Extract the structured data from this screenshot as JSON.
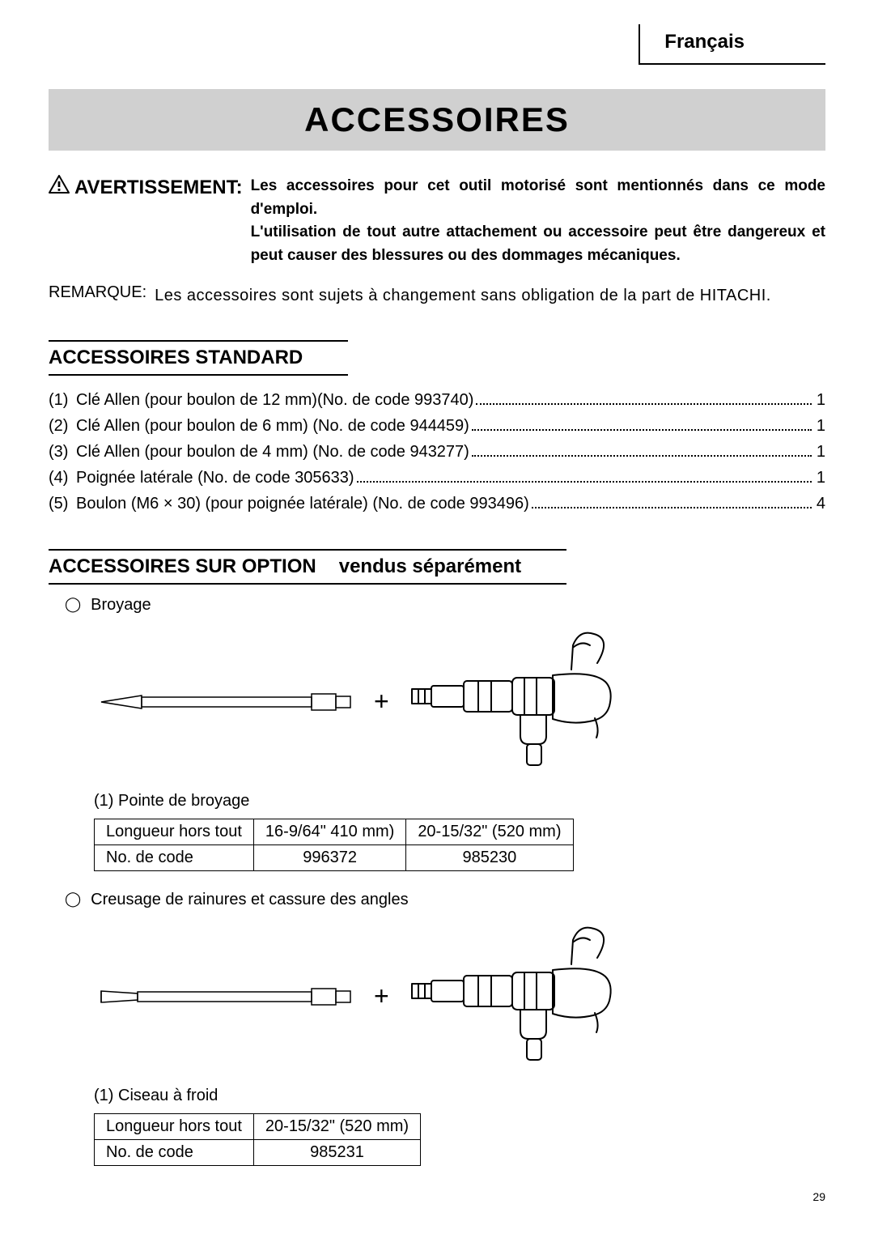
{
  "language": "Français",
  "title": "ACCESSOIRES",
  "warning": {
    "label": "AVERTISSEMENT:",
    "text": "Les accessoires pour cet outil motorisé sont mentionnés dans ce mode d'emploi.\nL'utilisation de tout autre attachement ou accessoire peut être dangereux et peut causer des blessures ou des dommages mécaniques."
  },
  "remark": {
    "label": "REMARQUE:",
    "text": "Les accessoires sont sujets à changement sans obligation de la part de HITACHI."
  },
  "standard": {
    "heading": "ACCESSOIRES STANDARD",
    "items": [
      {
        "num": "(1)",
        "label": "Clé Allen (pour boulon de 12 mm)(No. de code 993740)",
        "qty": "1"
      },
      {
        "num": "(2)",
        "label": "Clé Allen (pour boulon de 6 mm) (No. de code 944459)",
        "qty": "1"
      },
      {
        "num": "(3)",
        "label": "Clé Allen (pour boulon de 4 mm) (No. de code 943277)",
        "qty": "1"
      },
      {
        "num": "(4)",
        "label": "Poignée latérale (No. de code 305633)",
        "qty": "1"
      },
      {
        "num": "(5)",
        "label": "Boulon (M6 × 30) (pour poignée latérale) (No. de code 993496)",
        "qty": "4"
      }
    ]
  },
  "optional": {
    "heading": "ACCESSOIRES SUR OPTION",
    "subheading": "vendus séparément",
    "sections": [
      {
        "title": "Broyage",
        "caption": "(1) Pointe de broyage",
        "table": {
          "rows": [
            [
              "Longueur hors tout",
              "16-9/64\" 410 mm)",
              "20-15/32\" (520 mm)"
            ],
            [
              "No. de code",
              "996372",
              "985230"
            ]
          ],
          "align": [
            "left",
            "center",
            "center"
          ]
        },
        "tool_type": "pointed"
      },
      {
        "title": "Creusage de rainures et cassure des angles",
        "caption": "(1) Ciseau à froid",
        "table": {
          "rows": [
            [
              "Longueur hors tout",
              "20-15/32\" (520 mm)"
            ],
            [
              "No. de code",
              "985231"
            ]
          ],
          "align": [
            "left",
            "center"
          ]
        },
        "tool_type": "flat"
      }
    ]
  },
  "page_number": "29",
  "colors": {
    "title_bg": "#d0d0d0",
    "text": "#000000",
    "background": "#ffffff"
  }
}
